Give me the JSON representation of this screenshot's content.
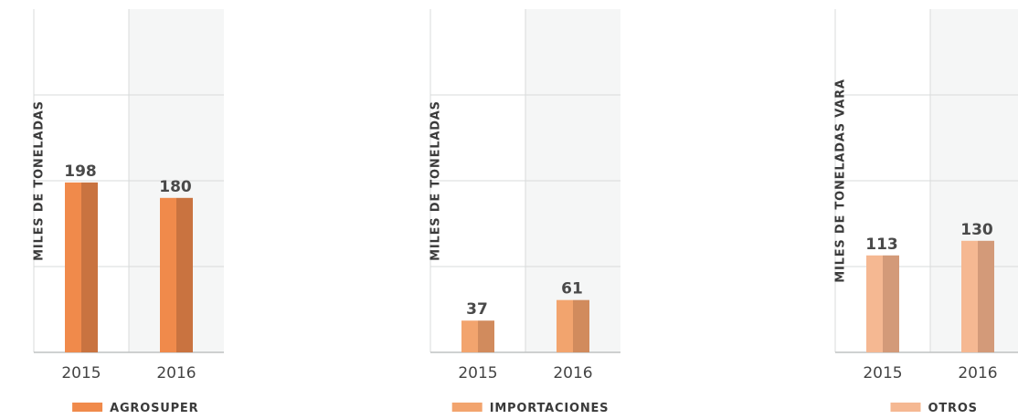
{
  "chart_data": [
    {
      "type": "bar",
      "categories": [
        "2015",
        "2016"
      ],
      "values": [
        198,
        180
      ],
      "ylabel": "MILES DE TONELADAS",
      "legend": "AGROSUPER",
      "ylim": [
        0,
        400
      ],
      "grid": true,
      "legend_position": "bottom",
      "colors": {
        "light": "#F08A4B",
        "dark": "#C97340"
      }
    },
    {
      "type": "bar",
      "categories": [
        "2015",
        "2016"
      ],
      "values": [
        37,
        61
      ],
      "ylabel": "MILES DE TONELADAS",
      "legend": "IMPORTACIONES",
      "ylim": [
        0,
        400
      ],
      "grid": true,
      "legend_position": "bottom",
      "colors": {
        "light": "#F2A46E",
        "dark": "#D18B5D"
      }
    },
    {
      "type": "bar",
      "categories": [
        "2015",
        "2016"
      ],
      "values": [
        113,
        130
      ],
      "ylabel": "MILES DE TONELADAS VARA",
      "legend": "OTROS",
      "ylim": [
        0,
        400
      ],
      "grid": true,
      "legend_position": "bottom",
      "colors": {
        "light": "#F5B892",
        "dark": "#D39A79"
      }
    }
  ]
}
